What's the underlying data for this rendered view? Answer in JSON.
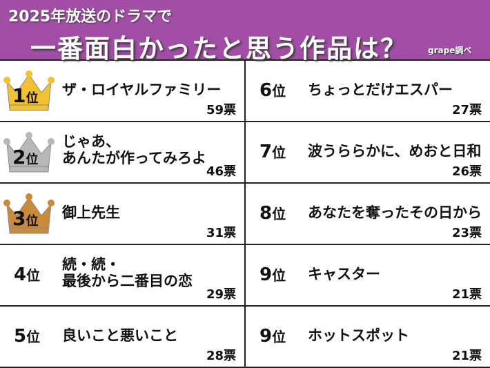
{
  "header": {
    "line1": "2025年放送のドラマで",
    "line2": "一番面白かったと思う作品は？",
    "source": "grape調べ",
    "background": "#a34ea6"
  },
  "rank_suffix": "位",
  "crown_colors": {
    "1": "#f2c230",
    "2": "#b8b8b8",
    "3": "#c98a3c"
  },
  "items": [
    {
      "rank": "1",
      "title": "ザ・ロイヤルファミリー",
      "votes": "59票",
      "crown": "gold"
    },
    {
      "rank": "2",
      "title": "じゃあ、\nあんたが作ってみろよ",
      "votes": "46票",
      "crown": "silver"
    },
    {
      "rank": "3",
      "title": "御上先生",
      "votes": "31票",
      "crown": "bronze"
    },
    {
      "rank": "4",
      "title": "続・続・\n最後から二番目の恋",
      "votes": "29票"
    },
    {
      "rank": "5",
      "title": "良いこと悪いこと",
      "votes": "28票"
    },
    {
      "rank": "6",
      "title": "ちょっとだけエスパー",
      "votes": "27票"
    },
    {
      "rank": "7",
      "title": "波うららかに、めおと日和",
      "votes": "26票"
    },
    {
      "rank": "8",
      "title": "あなたを奪ったその日から",
      "votes": "23票"
    },
    {
      "rank": "9",
      "title": "キャスター",
      "votes": "21票"
    },
    {
      "rank": "9",
      "title": "ホットスポット",
      "votes": "21票"
    }
  ]
}
